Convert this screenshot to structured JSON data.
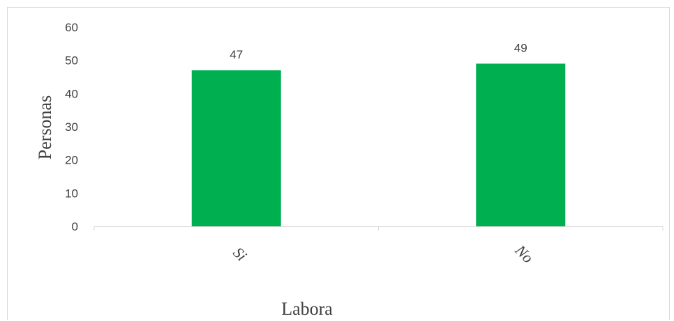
{
  "chart_data": {
    "type": "bar",
    "categories": [
      "Si",
      "No"
    ],
    "values": [
      47,
      49
    ],
    "data_labels": [
      "47",
      "49"
    ],
    "xlabel": "Labora",
    "ylabel": "Personas",
    "ylim": [
      0,
      60
    ],
    "yticks": [
      "0",
      "10",
      "20",
      "30",
      "40",
      "50",
      "60"
    ],
    "grid": false,
    "legend": "none",
    "bar_color": "#00b050",
    "axis_color": "#d9d9d9"
  }
}
